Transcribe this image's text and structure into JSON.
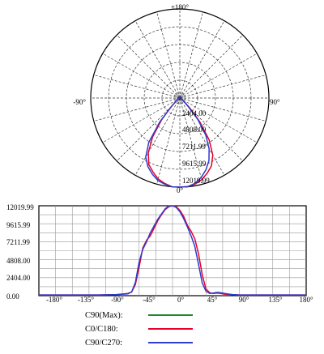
{
  "chart_data": [
    {
      "type": "polar",
      "angle_labels": {
        "top": "±180°",
        "left": "-90°",
        "right": "90°",
        "bottom": "0°"
      },
      "ring_labels": [
        "2404.00",
        "4808.00",
        "7211.99",
        "9615.99",
        "12019.99"
      ],
      "rmax": 12019.99,
      "grid": true,
      "series": [
        {
          "name": "C0/C180",
          "color": "#e8002a",
          "points": [
            [
              -5,
              12019.99
            ],
            [
              -10,
              11700
            ],
            [
              -15,
              11300
            ],
            [
              -20,
              10600
            ],
            [
              -25,
              9900
            ],
            [
              -30,
              8500
            ],
            [
              -35,
              6400
            ],
            [
              -40,
              3800
            ],
            [
              -45,
              1600
            ],
            [
              -50,
              700
            ],
            [
              -60,
              300
            ],
            [
              -75,
              200
            ],
            [
              -90,
              150
            ],
            [
              -120,
              150
            ],
            [
              -150,
              150
            ],
            [
              180,
              150
            ],
            [
              150,
              150
            ],
            [
              120,
              150
            ],
            [
              90,
              150
            ],
            [
              75,
              200
            ],
            [
              60,
              300
            ],
            [
              50,
              800
            ],
            [
              45,
              1900
            ],
            [
              40,
              4200
            ],
            [
              35,
              6900
            ],
            [
              30,
              8900
            ],
            [
              25,
              10100
            ],
            [
              20,
              10800
            ],
            [
              15,
              11400
            ],
            [
              10,
              11800
            ],
            [
              5,
              12000
            ],
            [
              0,
              12019.99
            ]
          ]
        },
        {
          "name": "C90/C270",
          "color": "#2e3cd0",
          "points": [
            [
              -5,
              12019.99
            ],
            [
              -10,
              11800
            ],
            [
              -15,
              11500
            ],
            [
              -20,
              10900
            ],
            [
              -25,
              10200
            ],
            [
              -30,
              9200
            ],
            [
              -35,
              7300
            ],
            [
              -40,
              4200
            ],
            [
              -45,
              1500
            ],
            [
              -50,
              600
            ],
            [
              -60,
              250
            ],
            [
              -75,
              200
            ],
            [
              -90,
              150
            ],
            [
              -120,
              150
            ],
            [
              -150,
              150
            ],
            [
              180,
              150
            ],
            [
              150,
              150
            ],
            [
              120,
              150
            ],
            [
              90,
              150
            ],
            [
              75,
              200
            ],
            [
              60,
              250
            ],
            [
              50,
              700
            ],
            [
              45,
              1500
            ],
            [
              40,
              3800
            ],
            [
              35,
              6100
            ],
            [
              30,
              7900
            ],
            [
              25,
              9300
            ],
            [
              20,
              10300
            ],
            [
              15,
              11100
            ],
            [
              10,
              11700
            ],
            [
              5,
              12000
            ],
            [
              0,
              12019.99
            ]
          ]
        }
      ]
    },
    {
      "type": "line",
      "xticks": [
        "-180°",
        "-135°",
        "-90°",
        "-45°",
        "0°",
        "45°",
        "90°",
        "135°",
        "180°"
      ],
      "xlim": [
        -180,
        180
      ],
      "yticks": [
        "0.00",
        "2404.00",
        "4808.00",
        "7211.99",
        "9615.99",
        "12019.99"
      ],
      "ylim": [
        0,
        12019.99
      ],
      "grid": true,
      "series": [
        {
          "name": "C0/C180",
          "color": "#e8002a",
          "points": [
            [
              -180,
              100
            ],
            [
              -100,
              100
            ],
            [
              -75,
              150
            ],
            [
              -60,
              300
            ],
            [
              -55,
              500
            ],
            [
              -50,
              1500
            ],
            [
              -45,
              3800
            ],
            [
              -40,
              6400
            ],
            [
              -35,
              7400
            ],
            [
              -30,
              8000
            ],
            [
              -25,
              9000
            ],
            [
              -20,
              10000
            ],
            [
              -15,
              10800
            ],
            [
              -10,
              11500
            ],
            [
              -5,
              11900
            ],
            [
              0,
              12019.99
            ],
            [
              5,
              11900
            ],
            [
              10,
              11400
            ],
            [
              15,
              10600
            ],
            [
              20,
              9400
            ],
            [
              25,
              8600
            ],
            [
              30,
              7600
            ],
            [
              35,
              5600
            ],
            [
              40,
              2800
            ],
            [
              45,
              900
            ],
            [
              50,
              400
            ],
            [
              55,
              300
            ],
            [
              60,
              350
            ],
            [
              65,
              300
            ],
            [
              70,
              200
            ],
            [
              80,
              150
            ],
            [
              90,
              100
            ],
            [
              180,
              100
            ]
          ]
        },
        {
          "name": "C90/C270",
          "color": "#2e3cd0",
          "points": [
            [
              -180,
              100
            ],
            [
              -100,
              100
            ],
            [
              -75,
              150
            ],
            [
              -60,
              250
            ],
            [
              -55,
              500
            ],
            [
              -50,
              1800
            ],
            [
              -45,
              4500
            ],
            [
              -40,
              6200
            ],
            [
              -35,
              7200
            ],
            [
              -30,
              8400
            ],
            [
              -25,
              9300
            ],
            [
              -20,
              10200
            ],
            [
              -15,
              10900
            ],
            [
              -10,
              11600
            ],
            [
              -5,
              12000
            ],
            [
              0,
              12019.99
            ],
            [
              5,
              11800
            ],
            [
              10,
              11200
            ],
            [
              15,
              10300
            ],
            [
              20,
              9200
            ],
            [
              25,
              8000
            ],
            [
              30,
              6600
            ],
            [
              35,
              4200
            ],
            [
              40,
              1700
            ],
            [
              45,
              600
            ],
            [
              50,
              300
            ],
            [
              55,
              350
            ],
            [
              60,
              450
            ],
            [
              65,
              400
            ],
            [
              70,
              300
            ],
            [
              80,
              150
            ],
            [
              90,
              100
            ],
            [
              180,
              100
            ]
          ]
        }
      ]
    }
  ],
  "legend": [
    {
      "label": "C90(Max):",
      "color": "#1f8a2a"
    },
    {
      "label": "C0/C180:",
      "color": "#e8002a"
    },
    {
      "label": "C90/C270:",
      "color": "#2e3cd0"
    }
  ]
}
